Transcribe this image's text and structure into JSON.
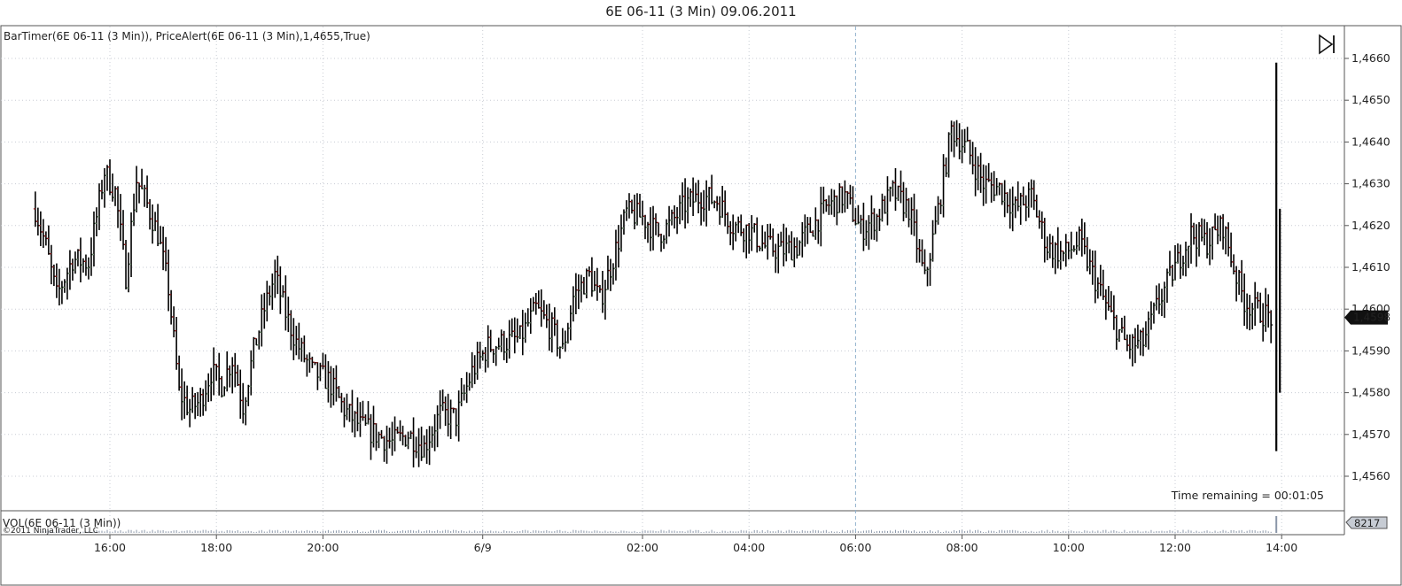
{
  "title": "6E 06-11 (3 Min)   09.06.2011",
  "indicator_label": "BarTimer(6E 06-11 (3 Min)), PriceAlert(6E 06-11 (3 Min),1,4655,True)",
  "time_remaining": "Time remaining = 00:01:05",
  "volume_label": "VOL(6E 06-11 (3 Min))",
  "copyright": "©2011 NinjaTrader, LLC",
  "last_price_label": "1,4598",
  "volume_value_label": "8217",
  "colors": {
    "bar": "#000000",
    "down_accent": "#8b1a1a",
    "up_accent": "#6b8a6b",
    "grid": "#c8ccd4",
    "volume": "#8a96a8"
  },
  "chart_data": {
    "type": "ohlc",
    "ylim": [
      1.455,
      1.4665
    ],
    "yticks": [
      {
        "value": 1.456,
        "label": "1,4560"
      },
      {
        "value": 1.457,
        "label": "1,4570"
      },
      {
        "value": 1.458,
        "label": "1,4580"
      },
      {
        "value": 1.459,
        "label": "1,4590"
      },
      {
        "value": 1.46,
        "label": "1,4600"
      },
      {
        "value": 1.461,
        "label": "1,4610"
      },
      {
        "value": 1.462,
        "label": "1,4620"
      },
      {
        "value": 1.463,
        "label": "1,4630"
      },
      {
        "value": 1.464,
        "label": "1,4640"
      },
      {
        "value": 1.465,
        "label": "1,4650"
      },
      {
        "value": 1.466,
        "label": "1,4660"
      }
    ],
    "xlim": [
      14.6,
      39.05
    ],
    "xticks": [
      {
        "t": 16,
        "label": "16:00"
      },
      {
        "t": 18,
        "label": "18:00"
      },
      {
        "t": 20,
        "label": "20:00"
      },
      {
        "t": 23,
        "label": "6/9"
      },
      {
        "t": 26,
        "label": "02:00"
      },
      {
        "t": 28,
        "label": "04:00"
      },
      {
        "t": 30,
        "label": "06:00"
      },
      {
        "t": 32,
        "label": "08:00"
      },
      {
        "t": 34,
        "label": "10:00"
      },
      {
        "t": 36,
        "label": "12:00"
      },
      {
        "t": 38,
        "label": "14:00"
      }
    ],
    "price_path": [
      [
        14.6,
        1.4624
      ],
      [
        14.8,
        1.4615
      ],
      [
        15.0,
        1.4603
      ],
      [
        15.3,
        1.4612
      ],
      [
        15.6,
        1.4611
      ],
      [
        15.9,
        1.4633
      ],
      [
        16.1,
        1.4628
      ],
      [
        16.3,
        1.4608
      ],
      [
        16.5,
        1.4631
      ],
      [
        16.7,
        1.4625
      ],
      [
        16.9,
        1.4618
      ],
      [
        17.1,
        1.4605
      ],
      [
        17.3,
        1.458
      ],
      [
        17.5,
        1.4576
      ],
      [
        17.7,
        1.4578
      ],
      [
        17.9,
        1.4585
      ],
      [
        18.1,
        1.4582
      ],
      [
        18.3,
        1.4588
      ],
      [
        18.5,
        1.4577
      ],
      [
        18.7,
        1.459
      ],
      [
        18.9,
        1.46
      ],
      [
        19.1,
        1.4608
      ],
      [
        19.3,
        1.4599
      ],
      [
        19.5,
        1.4592
      ],
      [
        19.8,
        1.4585
      ],
      [
        20.1,
        1.4583
      ],
      [
        20.4,
        1.4576
      ],
      [
        20.7,
        1.4572
      ],
      [
        21.0,
        1.457
      ],
      [
        21.3,
        1.4568
      ],
      [
        21.6,
        1.457
      ],
      [
        21.9,
        1.4567
      ],
      [
        22.2,
        1.4575
      ],
      [
        22.5,
        1.4574
      ],
      [
        22.8,
        1.4585
      ],
      [
        23.1,
        1.4591
      ],
      [
        23.4,
        1.4592
      ],
      [
        23.7,
        1.4593
      ],
      [
        24.0,
        1.46
      ],
      [
        24.3,
        1.4595
      ],
      [
        24.5,
        1.459
      ],
      [
        24.7,
        1.4603
      ],
      [
        25.0,
        1.4608
      ],
      [
        25.2,
        1.4602
      ],
      [
        25.4,
        1.461
      ],
      [
        25.7,
        1.4623
      ],
      [
        26.0,
        1.4622
      ],
      [
        26.3,
        1.4618
      ],
      [
        26.5,
        1.462
      ],
      [
        26.8,
        1.4625
      ],
      [
        27.1,
        1.4627
      ],
      [
        27.4,
        1.4626
      ],
      [
        27.7,
        1.462
      ],
      [
        28.0,
        1.4619
      ],
      [
        28.3,
        1.4615
      ],
      [
        28.6,
        1.4614
      ],
      [
        28.9,
        1.4615
      ],
      [
        29.2,
        1.462
      ],
      [
        29.5,
        1.4625
      ],
      [
        29.8,
        1.4627
      ],
      [
        30.1,
        1.4619
      ],
      [
        30.4,
        1.4622
      ],
      [
        30.7,
        1.4628
      ],
      [
        31.0,
        1.4624
      ],
      [
        31.3,
        1.4607
      ],
      [
        31.5,
        1.462
      ],
      [
        31.8,
        1.4643
      ],
      [
        32.1,
        1.4638
      ],
      [
        32.4,
        1.463
      ],
      [
        32.7,
        1.4629
      ],
      [
        33.0,
        1.4624
      ],
      [
        33.3,
        1.4627
      ],
      [
        33.6,
        1.4615
      ],
      [
        33.9,
        1.4613
      ],
      [
        34.2,
        1.4616
      ],
      [
        34.5,
        1.4607
      ],
      [
        34.8,
        1.4598
      ],
      [
        35.1,
        1.4591
      ],
      [
        35.4,
        1.4592
      ],
      [
        35.7,
        1.4602
      ],
      [
        36.0,
        1.461
      ],
      [
        36.3,
        1.4618
      ],
      [
        36.6,
        1.4616
      ],
      [
        36.9,
        1.462
      ],
      [
        37.1,
        1.461
      ],
      [
        37.3,
        1.4602
      ],
      [
        37.5,
        1.46
      ],
      [
        37.8,
        1.4598
      ]
    ],
    "final_bar": {
      "t": 37.9,
      "high": 1.4659,
      "low": 1.4566,
      "open": 1.4602,
      "close": 1.4598
    },
    "volume_spike": {
      "t": 37.9,
      "value": 8217
    }
  }
}
